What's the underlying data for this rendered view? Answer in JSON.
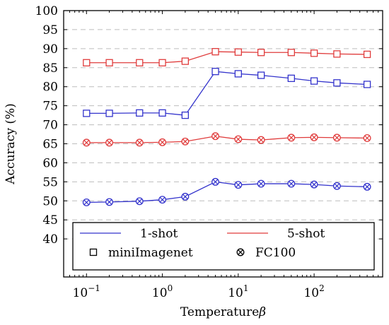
{
  "chart_data": {
    "type": "line",
    "xlabel": "Temperature",
    "xlabel_symbol": "β",
    "ylabel": "Accuracy (%)",
    "x_scale": "log",
    "xlim": [
      0.05,
      800
    ],
    "ylim": [
      30,
      100
    ],
    "y_ticks": [
      40,
      45,
      50,
      55,
      60,
      65,
      70,
      75,
      80,
      85,
      90,
      95,
      100
    ],
    "x_ticks": [
      {
        "value": 0.1,
        "base": "10",
        "exp": "−1"
      },
      {
        "value": 1,
        "base": "10",
        "exp": "0"
      },
      {
        "value": 10,
        "base": "10",
        "exp": "1"
      },
      {
        "value": 100,
        "base": "10",
        "exp": "2"
      }
    ],
    "grid": "horizontal dashed",
    "legend_position": "bottom",
    "x": [
      0.1,
      0.2,
      0.5,
      1,
      2,
      5,
      10,
      20,
      50,
      100,
      200,
      500
    ],
    "series": [
      {
        "shot": "1-shot",
        "dataset": "miniImagenet",
        "color": "#3333cc",
        "marker": "square",
        "values": [
          73.0,
          73.0,
          73.1,
          73.1,
          72.5,
          84.0,
          83.4,
          83.0,
          82.2,
          81.5,
          81.0,
          80.6
        ]
      },
      {
        "shot": "5-shot",
        "dataset": "miniImagenet",
        "color": "#e03c3c",
        "marker": "square",
        "values": [
          86.3,
          86.3,
          86.3,
          86.3,
          86.7,
          89.2,
          89.1,
          89.0,
          89.0,
          88.8,
          88.6,
          88.5
        ]
      },
      {
        "shot": "5-shot",
        "dataset": "FC100",
        "color": "#e03c3c",
        "marker": "circle-x",
        "values": [
          65.3,
          65.3,
          65.3,
          65.4,
          65.6,
          67.0,
          66.2,
          66.0,
          66.6,
          66.7,
          66.6,
          66.5
        ]
      },
      {
        "shot": "1-shot",
        "dataset": "FC100",
        "color": "#3333cc",
        "marker": "circle-x",
        "values": [
          49.6,
          49.7,
          49.9,
          50.3,
          51.1,
          55.0,
          54.2,
          54.5,
          54.5,
          54.3,
          53.9,
          53.7
        ]
      }
    ],
    "legend": [
      {
        "label": "1-shot",
        "kind": "line",
        "color": "#3333cc"
      },
      {
        "label": "5-shot",
        "kind": "line",
        "color": "#e03c3c"
      },
      {
        "label": "miniImagenet",
        "kind": "marker",
        "marker": "square"
      },
      {
        "label": "FC100",
        "kind": "marker",
        "marker": "circle-x"
      }
    ]
  }
}
